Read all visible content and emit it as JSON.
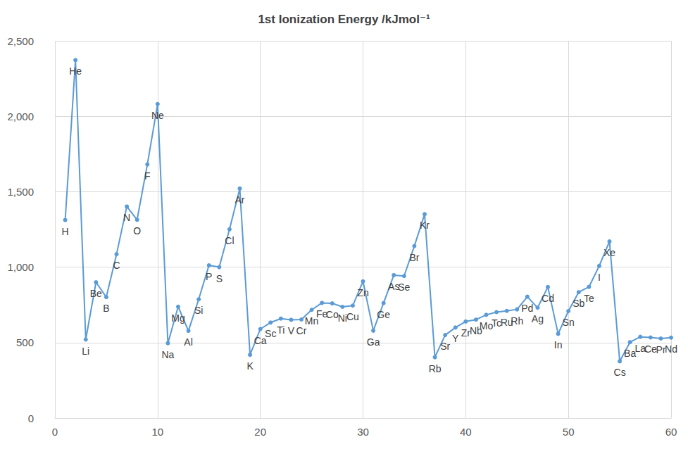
{
  "chart_data": {
    "type": "line",
    "title": "1st Ionization Energy /kJmol⁻¹",
    "x": [
      1,
      2,
      3,
      4,
      5,
      6,
      7,
      8,
      9,
      10,
      11,
      12,
      13,
      14,
      15,
      16,
      17,
      18,
      19,
      20,
      21,
      22,
      23,
      24,
      25,
      26,
      27,
      28,
      29,
      30,
      31,
      32,
      33,
      34,
      35,
      36,
      37,
      38,
      39,
      40,
      41,
      42,
      43,
      44,
      45,
      46,
      47,
      48,
      49,
      50,
      51,
      52,
      53,
      54,
      55,
      56,
      57,
      58,
      59,
      60
    ],
    "values": [
      1312,
      2372,
      520,
      900,
      801,
      1086,
      1402,
      1314,
      1681,
      2081,
      496,
      738,
      578,
      787,
      1012,
      1000,
      1251,
      1521,
      419,
      590,
      633,
      659,
      651,
      653,
      717,
      763,
      760,
      737,
      745,
      906,
      579,
      762,
      947,
      941,
      1140,
      1351,
      403,
      550,
      600,
      640,
      652,
      684,
      702,
      710,
      720,
      804,
      731,
      868,
      558,
      709,
      834,
      869,
      1008,
      1170,
      376,
      503,
      538,
      534,
      527,
      533
    ],
    "point_labels": [
      "H",
      "He",
      "Li",
      "Be",
      "B",
      "C",
      "N",
      "O",
      "F",
      "Ne",
      "Na",
      "Mg",
      "Al",
      "Si",
      "P",
      "S",
      "Cl",
      "Ar",
      "K",
      "Ca",
      "Sc",
      "Ti",
      "V",
      "Cr",
      "Mn",
      "Fe",
      "Co",
      "Ni",
      "Cu",
      "Zn",
      "Ga",
      "Ge",
      "As",
      "Se",
      "Br",
      "Kr",
      "Rb",
      "Sr",
      "Y",
      "Zr",
      "Nb",
      "Mo",
      "Tc",
      "Ru",
      "Rh",
      "Pd",
      "Ag",
      "Cd",
      "In",
      "Sn",
      "Sb",
      "Te",
      "I",
      "Xe",
      "Cs",
      "Ba",
      "La",
      "Ce",
      "Pr",
      "Nd"
    ],
    "color": "#5b9bd5",
    "marker": "circle",
    "line_style": "solid",
    "xlim": [
      0,
      60
    ],
    "xticks": [
      0,
      10,
      20,
      30,
      40,
      50,
      60
    ],
    "ylim": [
      0,
      2500
    ],
    "yticks": [
      0,
      500,
      1000,
      1500,
      2000,
      2500
    ],
    "grid": true
  }
}
